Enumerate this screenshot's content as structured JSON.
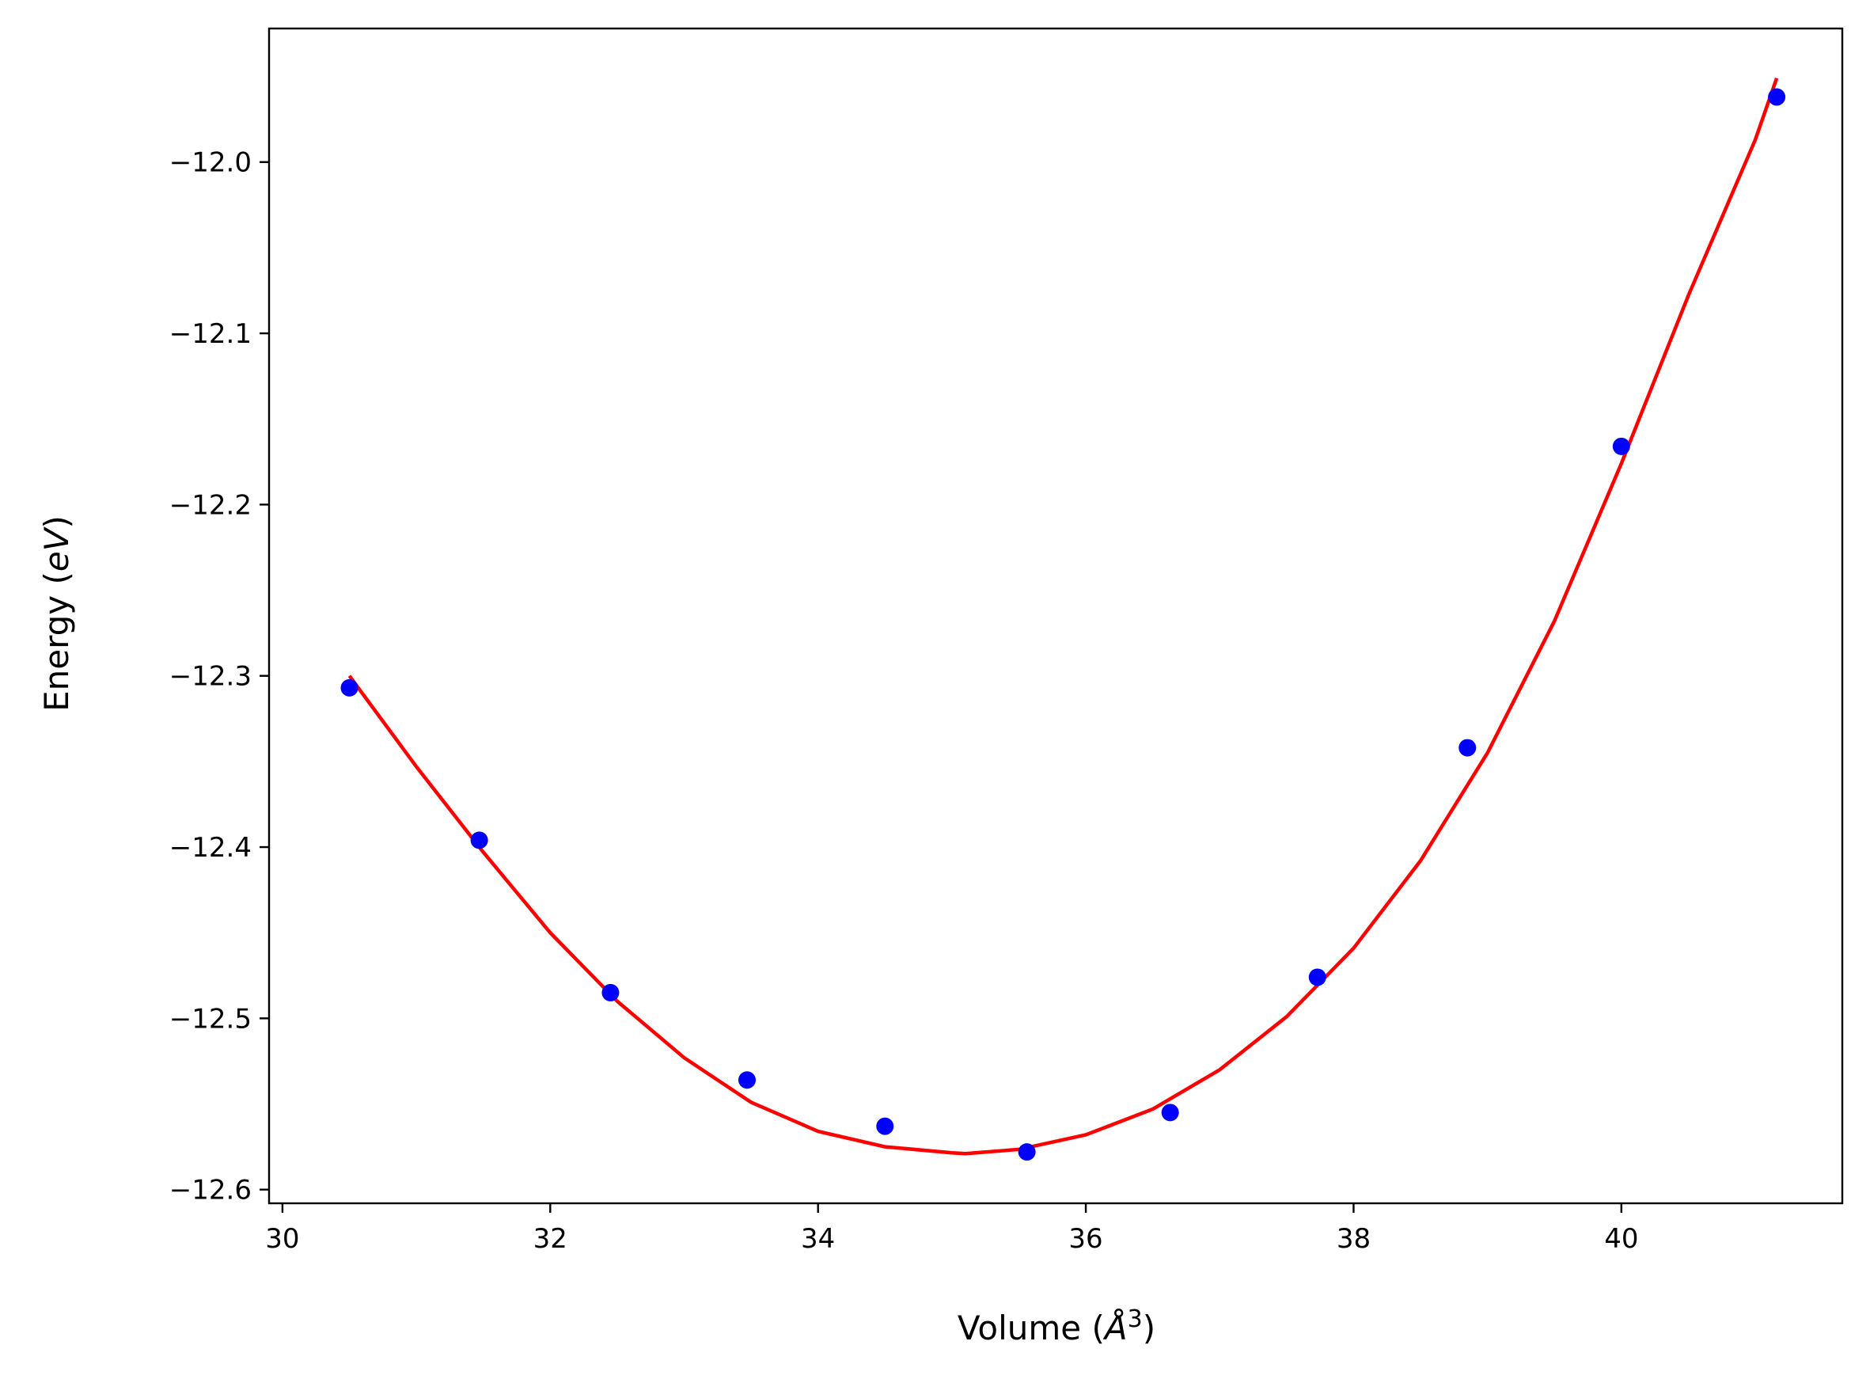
{
  "chart_data": {
    "type": "scatter",
    "title": "",
    "xlabel": "Volume (Å³)",
    "ylabel": "Energy (eV)",
    "xlabel_parts": {
      "prefix": "Volume (",
      "unit": "Å",
      "power": "3",
      "suffix": ")"
    },
    "ylabel_parts": {
      "prefix": "Energy (",
      "unit": "eV",
      "suffix": ")"
    },
    "xlim": [
      29.9,
      41.65
    ],
    "ylim": [
      -12.608,
      -11.922
    ],
    "xticks": [
      30,
      32,
      34,
      36,
      38,
      40
    ],
    "yticks": [
      -12.0,
      -12.1,
      -12.2,
      -12.3,
      -12.4,
      -12.5,
      -12.6
    ],
    "xtick_labels": [
      "30",
      "32",
      "34",
      "36",
      "38",
      "40"
    ],
    "ytick_labels": [
      "−12.0",
      "−12.1",
      "−12.2",
      "−12.3",
      "−12.4",
      "−12.5",
      "−12.6"
    ],
    "grid": false,
    "legend": "none",
    "series": [
      {
        "kind": "points",
        "color": "#0000ff",
        "x": [
          30.5,
          31.47,
          32.45,
          33.47,
          34.5,
          35.56,
          36.63,
          37.73,
          38.85,
          40.0,
          41.16
        ],
        "y": [
          -12.307,
          -12.396,
          -12.485,
          -12.536,
          -12.563,
          -12.578,
          -12.555,
          -12.476,
          -12.342,
          -12.166,
          -11.962
        ]
      },
      {
        "kind": "fit-curve",
        "color": "#ff0000",
        "x": [
          30.5,
          31.0,
          31.5,
          32.0,
          32.5,
          33.0,
          33.5,
          34.0,
          34.5,
          35.0,
          35.1,
          35.5,
          36.0,
          36.5,
          37.0,
          37.5,
          38.0,
          38.5,
          39.0,
          39.5,
          40.0,
          40.5,
          41.0,
          41.16
        ],
        "y": [
          -12.3,
          -12.353,
          -12.403,
          -12.45,
          -12.49,
          -12.523,
          -12.549,
          -12.566,
          -12.575,
          -12.5785,
          -12.579,
          -12.5765,
          -12.568,
          -12.553,
          -12.53,
          -12.499,
          -12.459,
          -12.408,
          -12.345,
          -12.268,
          -12.176,
          -12.078,
          -11.987,
          -11.951
        ]
      }
    ]
  }
}
